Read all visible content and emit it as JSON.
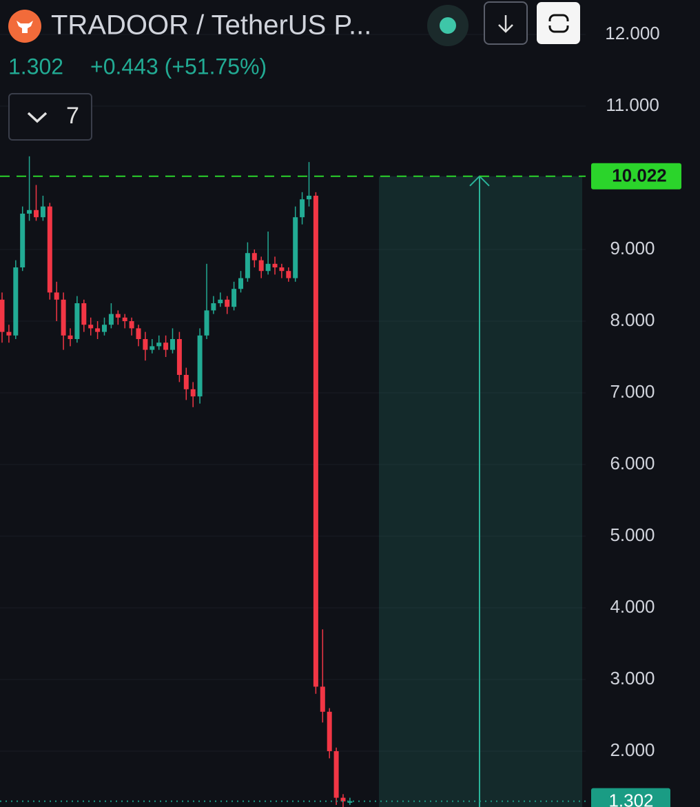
{
  "header": {
    "title": "TRADOOR / TetherUS P...",
    "price": "1.302",
    "change": "+0.443 (+51.75%)",
    "interval_count": "7"
  },
  "chart_data": {
    "type": "candlestick",
    "ylim": [
      1.221,
      12.481
    ],
    "yticks": [
      {
        "value": 12,
        "label": "12.000"
      },
      {
        "value": 11,
        "label": "11.000"
      },
      {
        "value": 9,
        "label": "9.000"
      },
      {
        "value": 8,
        "label": "8.000"
      },
      {
        "value": 7,
        "label": "7.000"
      },
      {
        "value": 6,
        "label": "6.000"
      },
      {
        "value": 5,
        "label": "5.000"
      },
      {
        "value": 4,
        "label": "4.000"
      },
      {
        "value": 3,
        "label": "3.000"
      },
      {
        "value": 2,
        "label": "2.000"
      }
    ],
    "grid": true,
    "open": [
      8.3,
      7.85,
      7.8,
      8.75,
      9.5,
      9.55,
      9.45,
      9.6,
      8.4,
      8.3,
      7.8,
      7.75,
      8.25,
      7.95,
      7.9,
      7.85,
      7.95,
      8.1,
      8.05,
      8.0,
      7.9,
      7.75,
      7.6,
      7.65,
      7.7,
      7.6,
      7.75,
      7.25,
      7.05,
      6.95,
      7.8,
      8.15,
      8.25,
      8.3,
      8.2,
      8.45,
      8.6,
      8.95,
      8.85,
      8.7,
      8.8,
      8.75,
      8.7,
      8.6,
      9.45,
      9.7,
      9.75,
      2.9,
      2.55,
      2.0,
      1.35,
      1.28
    ],
    "high": [
      8.4,
      7.95,
      8.85,
      9.6,
      10.3,
      9.9,
      9.75,
      9.65,
      8.55,
      8.4,
      7.9,
      8.35,
      8.3,
      8.05,
      8.0,
      8.05,
      8.25,
      8.15,
      8.1,
      8.05,
      7.95,
      7.85,
      7.75,
      7.8,
      7.8,
      7.9,
      7.85,
      7.35,
      7.15,
      7.9,
      8.8,
      8.35,
      8.4,
      8.35,
      8.55,
      8.7,
      9.1,
      9.0,
      8.9,
      9.25,
      8.9,
      8.8,
      8.75,
      9.6,
      9.8,
      10.22,
      9.8,
      3.7,
      2.6,
      2.05,
      1.4,
      1.35
    ],
    "low": [
      7.7,
      7.7,
      7.75,
      8.7,
      9.4,
      9.4,
      9.4,
      8.3,
      8.0,
      7.6,
      7.65,
      7.7,
      7.85,
      7.8,
      7.75,
      7.8,
      7.9,
      7.95,
      7.9,
      7.8,
      7.65,
      7.45,
      7.55,
      7.6,
      7.5,
      7.55,
      7.15,
      6.9,
      6.8,
      6.85,
      7.75,
      8.1,
      8.2,
      8.1,
      8.15,
      8.4,
      8.55,
      8.75,
      8.6,
      8.65,
      8.65,
      8.6,
      8.55,
      8.55,
      9.35,
      9.6,
      2.8,
      2.4,
      1.9,
      1.25,
      1.22,
      1.25
    ],
    "close": [
      7.85,
      7.8,
      8.75,
      9.5,
      9.55,
      9.45,
      9.6,
      8.4,
      8.3,
      7.8,
      7.75,
      8.25,
      7.95,
      7.9,
      7.85,
      7.95,
      8.1,
      8.05,
      8.0,
      7.9,
      7.75,
      7.6,
      7.65,
      7.7,
      7.6,
      7.75,
      7.25,
      7.05,
      6.95,
      7.8,
      8.15,
      8.25,
      8.3,
      8.2,
      8.45,
      8.6,
      8.95,
      8.85,
      8.7,
      8.8,
      8.75,
      8.7,
      8.6,
      9.45,
      9.7,
      9.75,
      2.9,
      2.55,
      2.0,
      1.35,
      1.3,
      1.302
    ],
    "up_color": "#22ab94",
    "down_color": "#f23645",
    "target_price": 10.022,
    "target_color": "#2bd42b",
    "last_price": 1.302,
    "last_color": "#1a9c84"
  }
}
